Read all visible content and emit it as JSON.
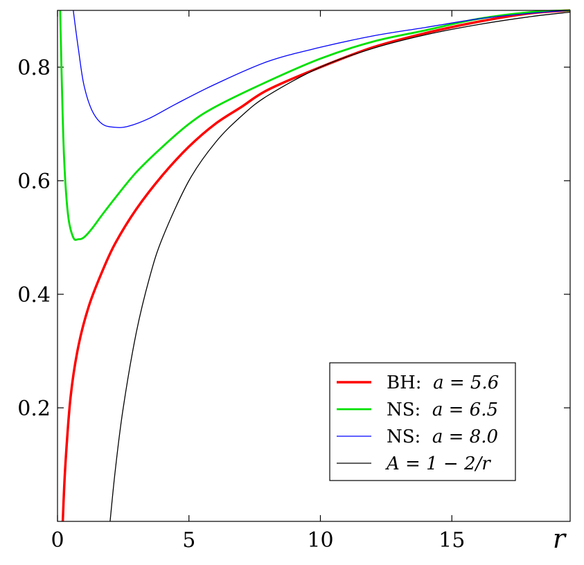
{
  "chart_data": {
    "type": "line",
    "title": "",
    "xlabel": "r",
    "ylabel": "",
    "xlim": [
      0,
      19.5
    ],
    "ylim": [
      0,
      0.9
    ],
    "x_ticks": [
      0,
      5,
      10,
      15
    ],
    "x_tick_labels": [
      "0",
      "5",
      "10",
      "15"
    ],
    "y_ticks": [
      0.2,
      0.4,
      0.6,
      0.8
    ],
    "y_tick_labels": [
      "0.2",
      "0.4",
      "0.6",
      "0.8"
    ],
    "grid": false,
    "legend_position": "bottom-right",
    "series": [
      {
        "name": "BH: a = 5.6",
        "label_prefix": "BH:",
        "label_math": "a = 5.6",
        "color": "#ff0000",
        "x": [
          0.2,
          0.3,
          0.5,
          0.8,
          1.2,
          1.7,
          2.2,
          3.0,
          4.0,
          5.0,
          6.0,
          7.0,
          8.0,
          10.0,
          12.0,
          14.0,
          16.0,
          18.0,
          19.5
        ],
        "y": [
          0.0,
          0.1,
          0.22,
          0.31,
          0.38,
          0.44,
          0.49,
          0.55,
          0.61,
          0.66,
          0.7,
          0.73,
          0.76,
          0.8,
          0.835,
          0.86,
          0.88,
          0.895,
          0.9
        ]
      },
      {
        "name": "NS: a = 6.5",
        "label_prefix": "NS:",
        "label_math": "a = 6.5",
        "color": "#00e000",
        "x": [
          0.1,
          0.15,
          0.25,
          0.4,
          0.6,
          0.8,
          1.0,
          1.3,
          1.7,
          2.2,
          3.0,
          4.0,
          5.0,
          6.0,
          8.0,
          10.0,
          12.0,
          14.0,
          16.0,
          18.0,
          19.5
        ],
        "y": [
          0.9,
          0.8,
          0.64,
          0.54,
          0.5,
          0.497,
          0.5,
          0.515,
          0.54,
          0.57,
          0.615,
          0.66,
          0.7,
          0.73,
          0.775,
          0.815,
          0.845,
          0.865,
          0.885,
          0.897,
          0.9
        ]
      },
      {
        "name": "NS: a = 8.0",
        "label_prefix": "NS:",
        "label_math": "a = 8.0",
        "color": "#0000ff",
        "x": [
          0.6,
          0.8,
          1.0,
          1.3,
          1.7,
          2.2,
          2.7,
          3.5,
          4.5,
          6.0,
          8.0,
          10.0,
          12.0,
          14.0,
          16.0,
          18.0,
          19.5
        ],
        "y": [
          0.9,
          0.83,
          0.77,
          0.725,
          0.7,
          0.694,
          0.696,
          0.71,
          0.735,
          0.77,
          0.81,
          0.835,
          0.855,
          0.87,
          0.885,
          0.895,
          0.9
        ]
      },
      {
        "name": "A = 1 − 2/r",
        "label_prefix": "",
        "label_math": "A = 1 − 2/r",
        "color": "#000000",
        "x": [
          2.0,
          2.2,
          2.5,
          3.0,
          3.5,
          4.0,
          5.0,
          6.0,
          7.0,
          8.0,
          10.0,
          12.0,
          14.0,
          16.0,
          18.0,
          19.5
        ],
        "y": [
          0.0,
          0.091,
          0.2,
          0.333,
          0.429,
          0.5,
          0.6,
          0.667,
          0.714,
          0.75,
          0.8,
          0.833,
          0.857,
          0.875,
          0.889,
          0.897
        ]
      }
    ]
  }
}
